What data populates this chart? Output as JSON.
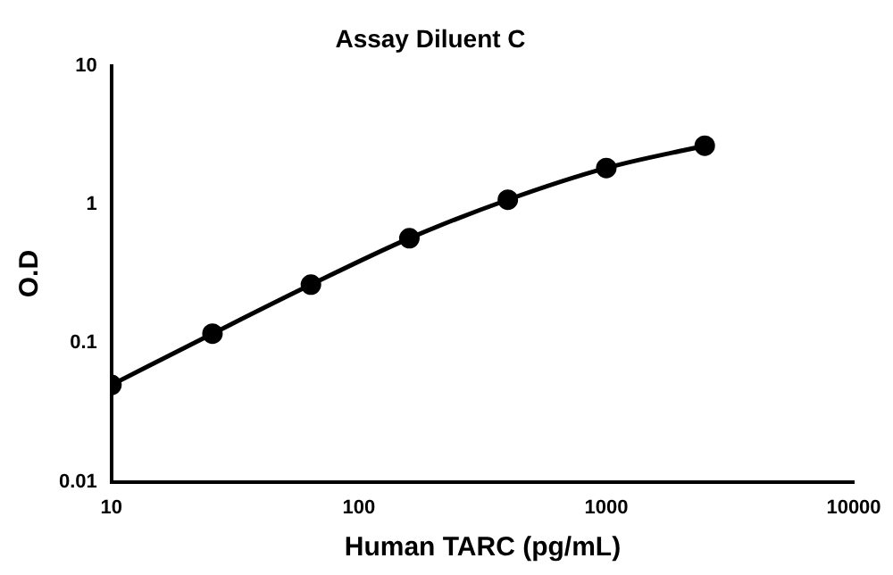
{
  "chart_data": {
    "type": "line",
    "title": "Assay Diluent C",
    "xlabel": "Human TARC (pg/mL)",
    "ylabel": "O.D",
    "x": [
      10,
      25.6,
      64,
      160,
      400,
      1000,
      2500
    ],
    "series": [
      {
        "color": "#000000",
        "values": [
          0.05,
          0.117,
          0.264,
          0.57,
          1.08,
          1.83,
          2.65
        ]
      }
    ],
    "log": "xy",
    "xlim": [
      10,
      10000
    ],
    "xticks": [
      10,
      100,
      1000,
      10000
    ],
    "ylim": [
      0.01,
      10
    ],
    "yticks": [
      0.01,
      0.1,
      1,
      10
    ],
    "grid": false,
    "legend": false,
    "marker": "circle",
    "line_style": "solid"
  }
}
